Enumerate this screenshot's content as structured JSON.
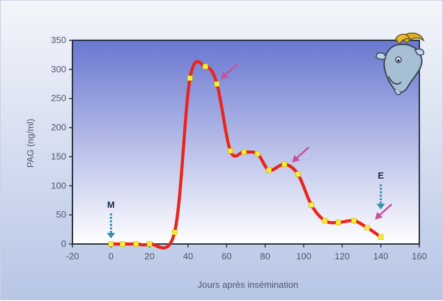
{
  "chart_data": {
    "type": "line",
    "xlabel": "Jours après insémination",
    "ylabel": "PAG  (ng/ml)",
    "xlim": [
      -20,
      160
    ],
    "ylim": [
      0,
      350
    ],
    "xticks": [
      "-20",
      "0",
      "20",
      "40",
      "60",
      "80",
      "100",
      "120",
      "140",
      "160"
    ],
    "yticks": [
      "0",
      "50",
      "100",
      "150",
      "200",
      "250",
      "300",
      "350"
    ],
    "grid": false,
    "series": [
      {
        "x": [
          0,
          6,
          13,
          20,
          33,
          41,
          49,
          55,
          62,
          69,
          76,
          82,
          90,
          97,
          104,
          111,
          118,
          126,
          133,
          140
        ],
        "y": [
          0,
          0,
          0,
          0,
          20,
          285,
          305,
          275,
          160,
          158,
          155,
          127,
          137,
          120,
          67,
          40,
          37,
          40,
          28,
          12
        ],
        "color": "#e8261c",
        "marker_color": "#f7ef3a"
      }
    ],
    "annotations": [
      {
        "label": "M",
        "x": 0,
        "y": 55,
        "arrow": "down",
        "color": "#3a8fb0"
      },
      {
        "label": "E",
        "x": 140,
        "y": 105,
        "arrow": "down",
        "color": "#3a8fb0"
      }
    ],
    "pointer_arrows": [
      {
        "x": 57,
        "y": 283,
        "color": "#c7509a"
      },
      {
        "x": 94,
        "y": 140,
        "color": "#c7509a"
      },
      {
        "x": 137,
        "y": 42,
        "color": "#c7509a"
      }
    ]
  },
  "colors": {
    "plot_top": "#6977d0",
    "plot_bottom": "#ffffff",
    "axis": "#283241"
  },
  "decor": {
    "corner_icon": "goat-head-icon"
  }
}
